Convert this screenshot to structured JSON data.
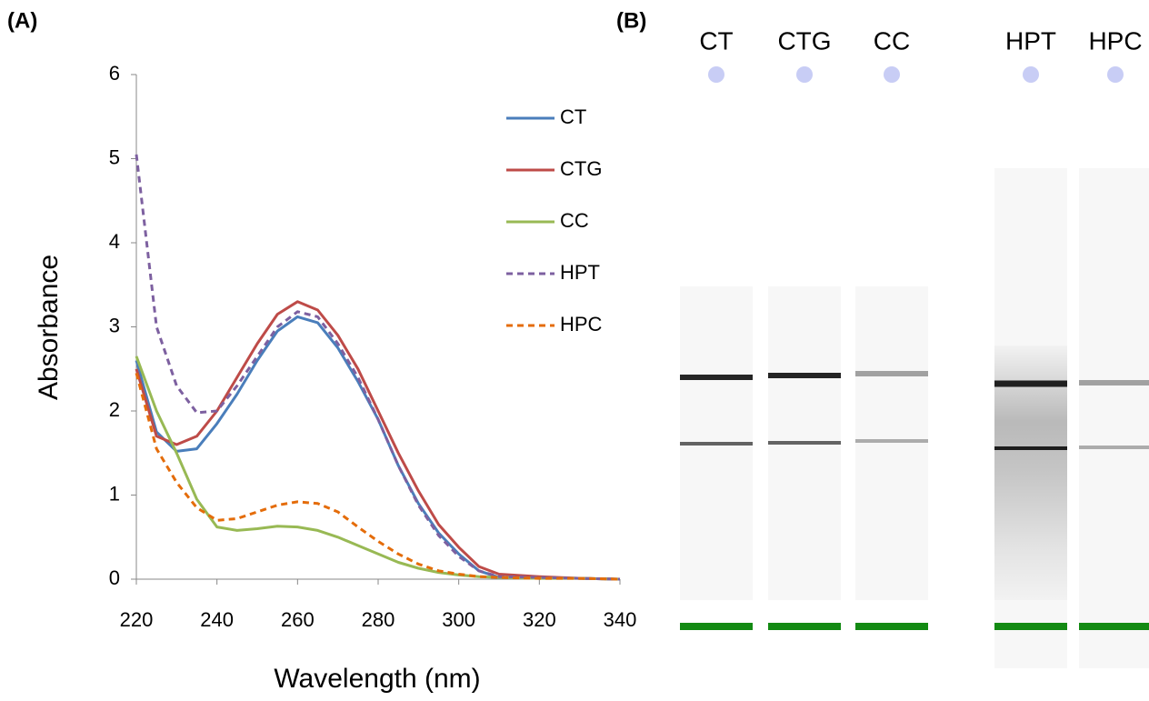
{
  "chart_data": {
    "type": "line",
    "panel_label": "(A)",
    "x_label": "Wavelength (nm)",
    "y_label": "Absorbance",
    "x": [
      220,
      225,
      230,
      235,
      240,
      245,
      250,
      255,
      260,
      265,
      270,
      275,
      280,
      285,
      290,
      295,
      300,
      305,
      310,
      320,
      330,
      340
    ],
    "series": [
      {
        "name": "CT",
        "color": "#4a7ebb",
        "dash": false,
        "values": [
          2.6,
          1.75,
          1.52,
          1.55,
          1.85,
          2.2,
          2.6,
          2.95,
          3.12,
          3.05,
          2.75,
          2.35,
          1.9,
          1.35,
          0.9,
          0.55,
          0.3,
          0.1,
          0.02,
          0.02,
          0.01,
          0
        ]
      },
      {
        "name": "CTG",
        "color": "#be4b48",
        "dash": false,
        "values": [
          2.5,
          1.7,
          1.6,
          1.7,
          2.0,
          2.4,
          2.8,
          3.15,
          3.3,
          3.2,
          2.9,
          2.5,
          2.0,
          1.5,
          1.05,
          0.65,
          0.38,
          0.15,
          0.06,
          0.03,
          0.01,
          0
        ]
      },
      {
        "name": "CC",
        "color": "#98b954",
        "dash": false,
        "values": [
          2.65,
          2.0,
          1.5,
          0.95,
          0.62,
          0.58,
          0.6,
          0.63,
          0.62,
          0.58,
          0.5,
          0.4,
          0.3,
          0.2,
          0.13,
          0.08,
          0.05,
          0.03,
          0.02,
          0.01,
          0.01,
          0
        ]
      },
      {
        "name": "HPT",
        "color": "#7d60a0",
        "dash": true,
        "values": [
          5.05,
          3.0,
          2.3,
          1.98,
          2.0,
          2.3,
          2.65,
          3.0,
          3.18,
          3.12,
          2.8,
          2.4,
          1.9,
          1.35,
          0.88,
          0.52,
          0.27,
          0.1,
          0.03,
          0.02,
          0.01,
          0
        ]
      },
      {
        "name": "HPC",
        "color": "#e46c0a",
        "dash": true,
        "values": [
          2.45,
          1.55,
          1.15,
          0.85,
          0.7,
          0.72,
          0.8,
          0.88,
          0.92,
          0.9,
          0.8,
          0.62,
          0.45,
          0.3,
          0.18,
          0.1,
          0.06,
          0.03,
          0.02,
          0.01,
          0.01,
          0
        ]
      }
    ],
    "xlim": [
      220,
      340
    ],
    "xticks": [
      220,
      240,
      260,
      280,
      300,
      320,
      340
    ],
    "ylim": [
      0,
      6
    ],
    "yticks": [
      0,
      1,
      2,
      3,
      4,
      5,
      6
    ],
    "grid": false,
    "legend": "right"
  },
  "gel": {
    "panel_label": "(B)",
    "lanes": [
      "CT",
      "CTG",
      "CC",
      "HPT",
      "HPC"
    ]
  }
}
